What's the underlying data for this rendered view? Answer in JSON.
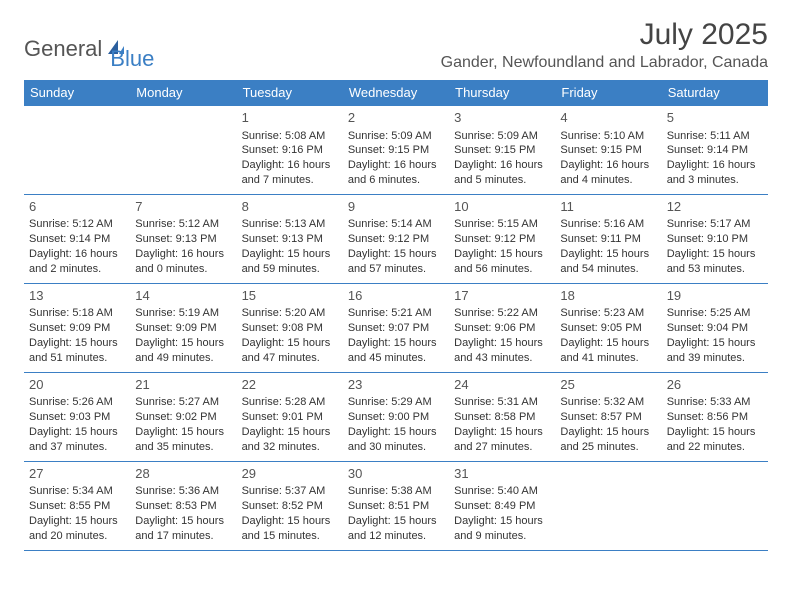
{
  "logo": {
    "part1": "General",
    "part2": "Blue"
  },
  "title": "July 2025",
  "location": "Gander, Newfoundland and Labrador, Canada",
  "colors": {
    "header_bg": "#3b7fc4",
    "header_text": "#ffffff",
    "border": "#3b7fc4",
    "body_text": "#333333",
    "title_text": "#444444"
  },
  "day_headers": [
    "Sunday",
    "Monday",
    "Tuesday",
    "Wednesday",
    "Thursday",
    "Friday",
    "Saturday"
  ],
  "weeks": [
    [
      null,
      null,
      {
        "n": "1",
        "sr": "Sunrise: 5:08 AM",
        "ss": "Sunset: 9:16 PM",
        "dl1": "Daylight: 16 hours",
        "dl2": "and 7 minutes."
      },
      {
        "n": "2",
        "sr": "Sunrise: 5:09 AM",
        "ss": "Sunset: 9:15 PM",
        "dl1": "Daylight: 16 hours",
        "dl2": "and 6 minutes."
      },
      {
        "n": "3",
        "sr": "Sunrise: 5:09 AM",
        "ss": "Sunset: 9:15 PM",
        "dl1": "Daylight: 16 hours",
        "dl2": "and 5 minutes."
      },
      {
        "n": "4",
        "sr": "Sunrise: 5:10 AM",
        "ss": "Sunset: 9:15 PM",
        "dl1": "Daylight: 16 hours",
        "dl2": "and 4 minutes."
      },
      {
        "n": "5",
        "sr": "Sunrise: 5:11 AM",
        "ss": "Sunset: 9:14 PM",
        "dl1": "Daylight: 16 hours",
        "dl2": "and 3 minutes."
      }
    ],
    [
      {
        "n": "6",
        "sr": "Sunrise: 5:12 AM",
        "ss": "Sunset: 9:14 PM",
        "dl1": "Daylight: 16 hours",
        "dl2": "and 2 minutes."
      },
      {
        "n": "7",
        "sr": "Sunrise: 5:12 AM",
        "ss": "Sunset: 9:13 PM",
        "dl1": "Daylight: 16 hours",
        "dl2": "and 0 minutes."
      },
      {
        "n": "8",
        "sr": "Sunrise: 5:13 AM",
        "ss": "Sunset: 9:13 PM",
        "dl1": "Daylight: 15 hours",
        "dl2": "and 59 minutes."
      },
      {
        "n": "9",
        "sr": "Sunrise: 5:14 AM",
        "ss": "Sunset: 9:12 PM",
        "dl1": "Daylight: 15 hours",
        "dl2": "and 57 minutes."
      },
      {
        "n": "10",
        "sr": "Sunrise: 5:15 AM",
        "ss": "Sunset: 9:12 PM",
        "dl1": "Daylight: 15 hours",
        "dl2": "and 56 minutes."
      },
      {
        "n": "11",
        "sr": "Sunrise: 5:16 AM",
        "ss": "Sunset: 9:11 PM",
        "dl1": "Daylight: 15 hours",
        "dl2": "and 54 minutes."
      },
      {
        "n": "12",
        "sr": "Sunrise: 5:17 AM",
        "ss": "Sunset: 9:10 PM",
        "dl1": "Daylight: 15 hours",
        "dl2": "and 53 minutes."
      }
    ],
    [
      {
        "n": "13",
        "sr": "Sunrise: 5:18 AM",
        "ss": "Sunset: 9:09 PM",
        "dl1": "Daylight: 15 hours",
        "dl2": "and 51 minutes."
      },
      {
        "n": "14",
        "sr": "Sunrise: 5:19 AM",
        "ss": "Sunset: 9:09 PM",
        "dl1": "Daylight: 15 hours",
        "dl2": "and 49 minutes."
      },
      {
        "n": "15",
        "sr": "Sunrise: 5:20 AM",
        "ss": "Sunset: 9:08 PM",
        "dl1": "Daylight: 15 hours",
        "dl2": "and 47 minutes."
      },
      {
        "n": "16",
        "sr": "Sunrise: 5:21 AM",
        "ss": "Sunset: 9:07 PM",
        "dl1": "Daylight: 15 hours",
        "dl2": "and 45 minutes."
      },
      {
        "n": "17",
        "sr": "Sunrise: 5:22 AM",
        "ss": "Sunset: 9:06 PM",
        "dl1": "Daylight: 15 hours",
        "dl2": "and 43 minutes."
      },
      {
        "n": "18",
        "sr": "Sunrise: 5:23 AM",
        "ss": "Sunset: 9:05 PM",
        "dl1": "Daylight: 15 hours",
        "dl2": "and 41 minutes."
      },
      {
        "n": "19",
        "sr": "Sunrise: 5:25 AM",
        "ss": "Sunset: 9:04 PM",
        "dl1": "Daylight: 15 hours",
        "dl2": "and 39 minutes."
      }
    ],
    [
      {
        "n": "20",
        "sr": "Sunrise: 5:26 AM",
        "ss": "Sunset: 9:03 PM",
        "dl1": "Daylight: 15 hours",
        "dl2": "and 37 minutes."
      },
      {
        "n": "21",
        "sr": "Sunrise: 5:27 AM",
        "ss": "Sunset: 9:02 PM",
        "dl1": "Daylight: 15 hours",
        "dl2": "and 35 minutes."
      },
      {
        "n": "22",
        "sr": "Sunrise: 5:28 AM",
        "ss": "Sunset: 9:01 PM",
        "dl1": "Daylight: 15 hours",
        "dl2": "and 32 minutes."
      },
      {
        "n": "23",
        "sr": "Sunrise: 5:29 AM",
        "ss": "Sunset: 9:00 PM",
        "dl1": "Daylight: 15 hours",
        "dl2": "and 30 minutes."
      },
      {
        "n": "24",
        "sr": "Sunrise: 5:31 AM",
        "ss": "Sunset: 8:58 PM",
        "dl1": "Daylight: 15 hours",
        "dl2": "and 27 minutes."
      },
      {
        "n": "25",
        "sr": "Sunrise: 5:32 AM",
        "ss": "Sunset: 8:57 PM",
        "dl1": "Daylight: 15 hours",
        "dl2": "and 25 minutes."
      },
      {
        "n": "26",
        "sr": "Sunrise: 5:33 AM",
        "ss": "Sunset: 8:56 PM",
        "dl1": "Daylight: 15 hours",
        "dl2": "and 22 minutes."
      }
    ],
    [
      {
        "n": "27",
        "sr": "Sunrise: 5:34 AM",
        "ss": "Sunset: 8:55 PM",
        "dl1": "Daylight: 15 hours",
        "dl2": "and 20 minutes."
      },
      {
        "n": "28",
        "sr": "Sunrise: 5:36 AM",
        "ss": "Sunset: 8:53 PM",
        "dl1": "Daylight: 15 hours",
        "dl2": "and 17 minutes."
      },
      {
        "n": "29",
        "sr": "Sunrise: 5:37 AM",
        "ss": "Sunset: 8:52 PM",
        "dl1": "Daylight: 15 hours",
        "dl2": "and 15 minutes."
      },
      {
        "n": "30",
        "sr": "Sunrise: 5:38 AM",
        "ss": "Sunset: 8:51 PM",
        "dl1": "Daylight: 15 hours",
        "dl2": "and 12 minutes."
      },
      {
        "n": "31",
        "sr": "Sunrise: 5:40 AM",
        "ss": "Sunset: 8:49 PM",
        "dl1": "Daylight: 15 hours",
        "dl2": "and 9 minutes."
      },
      null,
      null
    ]
  ]
}
